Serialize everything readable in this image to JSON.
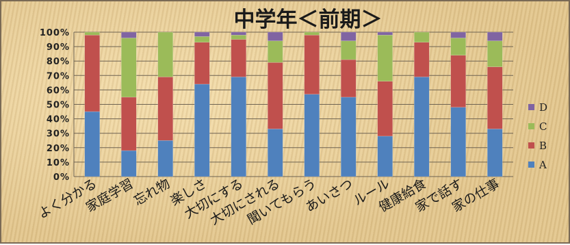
{
  "chart_data": {
    "type": "bar",
    "stacked": true,
    "normalized": true,
    "title": "中学年＜前期＞",
    "categories": [
      "よく分かる",
      "家庭学習",
      "忘れ物",
      "楽しさ",
      "大切にする",
      "大切にされる",
      "聞いてもらう",
      "あいさつ",
      "ルール",
      "健康給食",
      "家で話す",
      "家の仕事"
    ],
    "series": [
      {
        "name": "A",
        "color": "#4f81bd",
        "values": [
          45,
          18,
          25,
          64,
          69,
          33,
          57,
          55,
          28,
          69,
          48,
          33
        ]
      },
      {
        "name": "B",
        "color": "#c0504d",
        "values": [
          53,
          37,
          44,
          29,
          26,
          46,
          41,
          26,
          38,
          24,
          36,
          43
        ]
      },
      {
        "name": "C",
        "color": "#9bbb59",
        "values": [
          2,
          41,
          31,
          4,
          3,
          15,
          2,
          13,
          32,
          7,
          12,
          18
        ]
      },
      {
        "name": "D",
        "color": "#8064a2",
        "values": [
          0,
          4,
          0,
          3,
          2,
          6,
          0,
          6,
          2,
          0,
          4,
          6
        ]
      }
    ],
    "yticks": [
      "0%",
      "10%",
      "20%",
      "30%",
      "40%",
      "50%",
      "60%",
      "70%",
      "80%",
      "90%",
      "100%"
    ],
    "ylim": [
      0,
      100
    ],
    "grid": true,
    "legend": "right",
    "legend_order": [
      "D",
      "C",
      "B",
      "A"
    ]
  }
}
